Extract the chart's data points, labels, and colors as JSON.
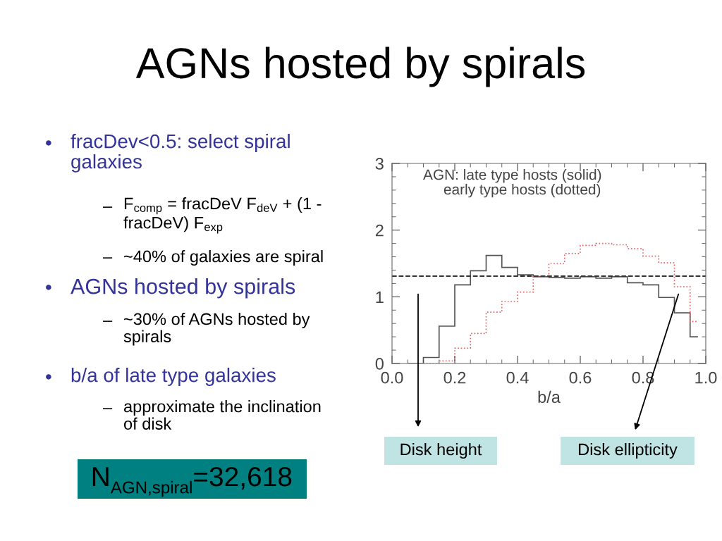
{
  "chart_data": {
    "type": "histogram",
    "title": "AGNs hosted by spirals",
    "xlabel": "b/a",
    "bins": [
      0.05,
      0.1,
      0.15,
      0.2,
      0.25,
      0.3,
      0.35,
      0.4,
      0.45,
      0.5,
      0.55,
      0.6,
      0.65,
      0.7,
      0.75,
      0.8,
      0.85,
      0.9,
      0.95,
      0.975
    ],
    "series": [
      {
        "color": "#555555",
        "line_style": "solid",
        "values": [
          0.0,
          0.09,
          0.56,
          1.18,
          1.39,
          1.62,
          1.44,
          1.33,
          1.3,
          1.29,
          1.28,
          1.3,
          1.28,
          1.3,
          1.21,
          1.18,
          0.99,
          0.76,
          0.4
        ]
      },
      {
        "color": "#e06060",
        "line_style": "dotted",
        "values": [
          0.0,
          0.0,
          0.04,
          0.23,
          0.45,
          0.77,
          0.93,
          1.07,
          1.31,
          1.5,
          1.65,
          1.77,
          1.8,
          1.78,
          1.72,
          1.61,
          1.51,
          1.15,
          0.63
        ]
      }
    ],
    "xlim": [
      0,
      1
    ],
    "xticks": [
      {
        "value": 0,
        "label": "0.0"
      },
      0.2,
      0.4,
      0.6,
      0.8,
      {
        "value": 1,
        "label": "1.0"
      }
    ],
    "ylim": [
      0,
      3
    ],
    "yticks": [
      0,
      1,
      2,
      3
    ],
    "grid": false,
    "legend": false,
    "ref_lines": [
      {
        "axis": "y",
        "value": 1.31,
        "color": "#333333",
        "line_style": "dashed"
      }
    ],
    "annotations": [
      "AGN: late type hosts (solid)\n     early type hosts (dotted)",
      "Disk height",
      "Disk ellipticity",
      "•",
      "fracDev<0.5: select spiral\ngalaxies",
      "–",
      "F$_{comp}$ = fracDeV F$_{deV}$ + (1 -\nfracDeV) F$_{exp}$",
      "–",
      "~40% of galaxies are spiral",
      "•",
      "AGNs hosted by spirals",
      "–",
      "~30% of AGNs hosted by\nspirals",
      "•",
      "b/a of late type galaxies",
      "–",
      "approximate the inclination\nof disk",
      "N$_{AGN,spiral}$=32,618"
    ]
  }
}
